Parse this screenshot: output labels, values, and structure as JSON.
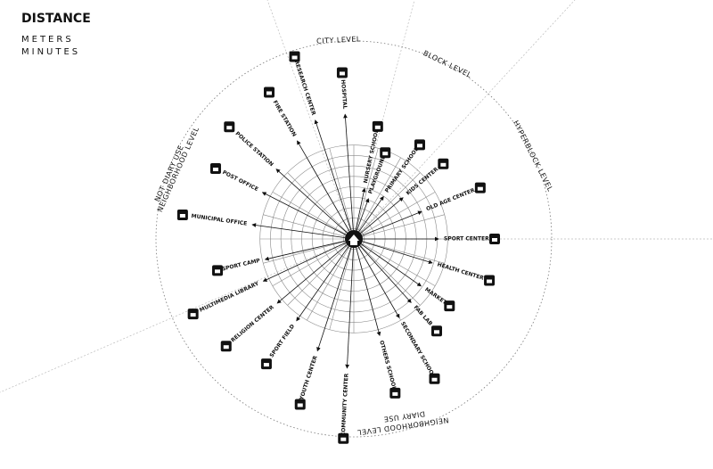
{
  "title": "DISTANCE",
  "legend": [
    "METERS",
    "MINUTES"
  ],
  "levels": [
    [
      "CITY LEVEL"
    ],
    [
      "BLOCK LEVEL"
    ],
    [
      "HYPERBLOCK LEVEL"
    ],
    [
      "NEIGHBORHOOD LEVEL",
      "NOT DIARY USE"
    ],
    [
      "NEIGHBORHOOD LEVEL",
      "DIARY USE"
    ]
  ],
  "facilities": [
    "HOSPITAL",
    "NURSERY SCHOOL",
    "PLAYGROUND",
    "PRIMARY SCHOOL",
    "KIDS CENTER",
    "OLD AGE CENTER",
    "SPORT CENTER",
    "HEALTH CENTER",
    "MARKET",
    "FAB LAB",
    "SECONDARY SCHOOL",
    "OTHERS SCHOOL",
    "COMMUNITY CENTER",
    "YOUTH CENTER",
    "SPORT FIELD",
    "RELIGION CENTER",
    "MULTIMEDIA LIBRARY",
    "SPORT CAMP",
    "MUNICIPAL OFFICE",
    "POST OFFICE",
    "POLICE STATION",
    "FIRE STATION",
    "RESEARCH CENTER"
  ]
}
